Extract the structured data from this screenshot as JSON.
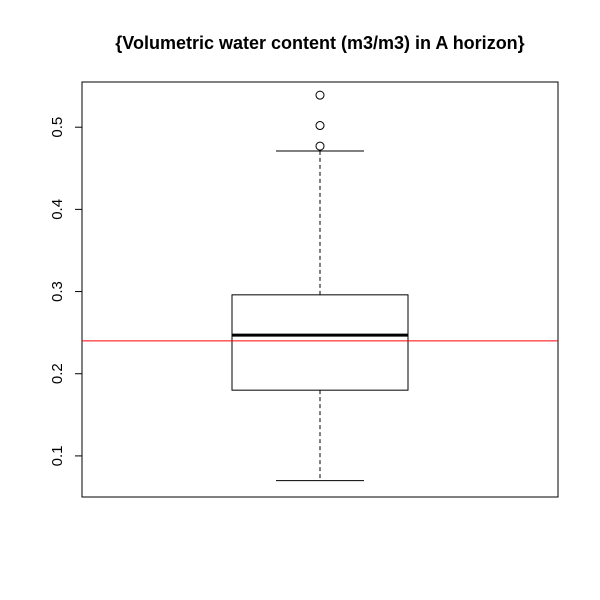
{
  "chart_data": {
    "type": "boxplot",
    "title": "{Volumetric water content (m3/m3) in A horizon}",
    "xlabel": "",
    "ylabel": "",
    "ylim": [
      0.05,
      0.555
    ],
    "y_ticks": [
      0.1,
      0.2,
      0.3,
      0.4,
      0.5
    ],
    "y_tick_labels": [
      "0.1",
      "0.2",
      "0.3",
      "0.4",
      "0.5"
    ],
    "box": {
      "lower_whisker": 0.07,
      "q1": 0.18,
      "median": 0.247,
      "q3": 0.296,
      "upper_whisker": 0.471
    },
    "outliers": [
      0.477,
      0.502,
      0.539
    ],
    "reference_line": {
      "y": 0.24,
      "color": "#ff0000"
    },
    "colors": {
      "box": "#000000",
      "reference": "#ff0000"
    },
    "grid": false
  }
}
